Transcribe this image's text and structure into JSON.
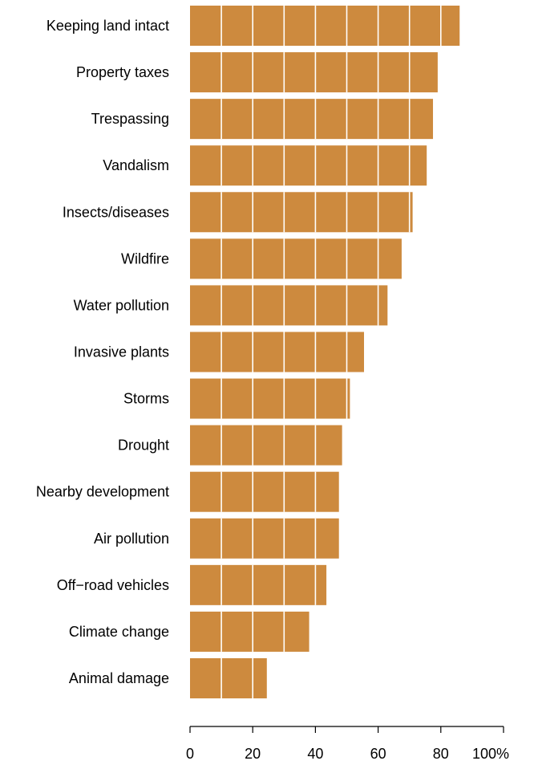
{
  "chart_data": {
    "type": "bar",
    "orientation": "horizontal",
    "title": "",
    "xlabel": "",
    "ylabel": "",
    "categories": [
      "Keeping land intact",
      "Property taxes",
      "Trespassing",
      "Vandalism",
      "Insects/diseases",
      "Wildfire",
      "Water pollution",
      "Invasive plants",
      "Storms",
      "Drought",
      "Nearby development",
      "Air pollution",
      "Off−road vehicles",
      "Climate change",
      "Animal damage"
    ],
    "values": [
      86,
      79,
      77.5,
      75.5,
      71,
      67.5,
      63,
      55.5,
      51,
      48.5,
      47.5,
      47.5,
      43.5,
      38,
      24.5
    ],
    "xlim": [
      0,
      100
    ],
    "xticks": [
      0,
      20,
      40,
      60,
      80,
      100
    ],
    "xtick_labels": [
      "0",
      "20",
      "40",
      "60",
      "80",
      "100%"
    ],
    "grid": false,
    "segment_step": 10,
    "colors": {
      "bar": "#CD8A3E",
      "divider": "#ffffff",
      "axis": "#000000"
    }
  }
}
